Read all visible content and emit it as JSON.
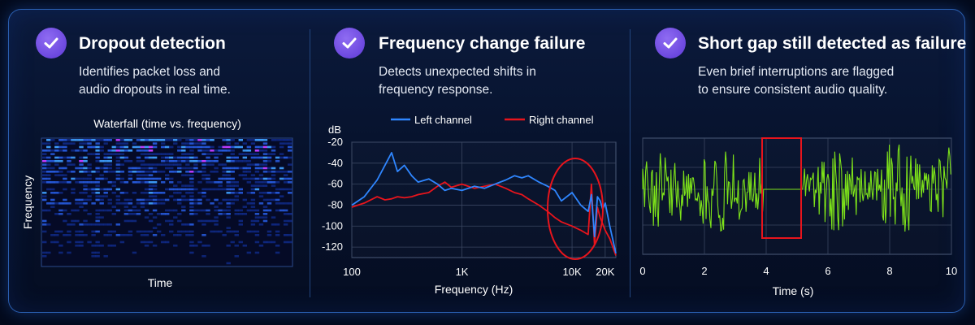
{
  "panels": [
    {
      "title": "Dropout detection",
      "desc_line1": "Identifies packet loss and",
      "desc_line2": "audio dropouts in real time.",
      "chart_title": "Waterfall (time vs. frequency)",
      "ylabel": "Frequency",
      "xlabel": "Time"
    },
    {
      "title": "Frequency change failure",
      "desc_line1": "Detects unexpected shifts in",
      "desc_line2": "frequency response.",
      "ylabel": "dB",
      "xlabel": "Frequency (Hz)"
    },
    {
      "title": "Short gap still detected as failure",
      "desc_line1": "Even brief interruptions are flagged",
      "desc_line2": "to ensure consistent audio quality.",
      "xlabel": "Time (s)"
    }
  ],
  "icons": {
    "check": "check-circle-icon"
  },
  "colors": {
    "accent": "#7150e6",
    "left_channel": "#2f86ff",
    "right_channel": "#e8141c",
    "waveform": "#7de21a",
    "highlight": "#e8141c"
  },
  "chart_data": [
    {
      "type": "heatmap",
      "title": "Waterfall (time vs. frequency)",
      "xlabel": "Time",
      "ylabel": "Frequency",
      "colormap": [
        "#060a2a",
        "#12309a",
        "#2a63f0",
        "#3fa0ff",
        "#bd3cff"
      ]
    },
    {
      "type": "line",
      "xscale": "log",
      "xlabel": "Frequency (Hz)",
      "ylabel": "dB",
      "xlim": [
        100,
        25000
      ],
      "ylim": [
        -130,
        -20
      ],
      "xticks": [
        100,
        1000,
        10000,
        20000
      ],
      "xtick_labels": [
        "100",
        "1K",
        "10K",
        "20K"
      ],
      "yticks": [
        -20,
        -40,
        -60,
        -80,
        -100,
        -120
      ],
      "ytick_labels": [
        "-20",
        "-40",
        "-60",
        "-80",
        "-100",
        "-120"
      ],
      "legend_position": "top",
      "grid": true,
      "x": [
        100,
        130,
        170,
        200,
        230,
        260,
        300,
        350,
        400,
        500,
        600,
        700,
        800,
        1000,
        1300,
        1600,
        2000,
        2500,
        3000,
        3500,
        4000,
        5000,
        6000,
        7000,
        8000,
        10000,
        12000,
        14000,
        15000,
        16000,
        17000,
        18000,
        19000,
        20000,
        22000,
        25000
      ],
      "series": [
        {
          "name": "Left channel",
          "color": "#2f86ff",
          "values": [
            -80,
            -72,
            -56,
            -42,
            -30,
            -48,
            -42,
            -52,
            -58,
            -55,
            -60,
            -66,
            -64,
            -66,
            -62,
            -64,
            -60,
            -56,
            -52,
            -54,
            -52,
            -58,
            -62,
            -66,
            -76,
            -68,
            -80,
            -86,
            -70,
            -110,
            -72,
            -76,
            -84,
            -78,
            -100,
            -126
          ]
        },
        {
          "name": "Right channel",
          "color": "#e8141c",
          "values": [
            -82,
            -78,
            -72,
            -75,
            -74,
            -72,
            -73,
            -72,
            -70,
            -68,
            -62,
            -58,
            -63,
            -60,
            -64,
            -62,
            -60,
            -64,
            -68,
            -70,
            -74,
            -80,
            -86,
            -92,
            -96,
            -100,
            -104,
            -108,
            -60,
            -118,
            -82,
            -92,
            -98,
            -104,
            -112,
            -128
          ]
        }
      ],
      "annotation": "ellipse around ~11K–25K Hz"
    },
    {
      "type": "line",
      "xlabel": "Time (s)",
      "xlim": [
        0,
        10
      ],
      "xticks": [
        0,
        2,
        4,
        6,
        8,
        10
      ],
      "xtick_labels": [
        "0",
        "2",
        "4",
        "6",
        "8",
        "10"
      ],
      "grid": true,
      "gap": [
        3.9,
        5.2
      ],
      "annotation": "red box around gap 3.9–5.2 s"
    }
  ]
}
